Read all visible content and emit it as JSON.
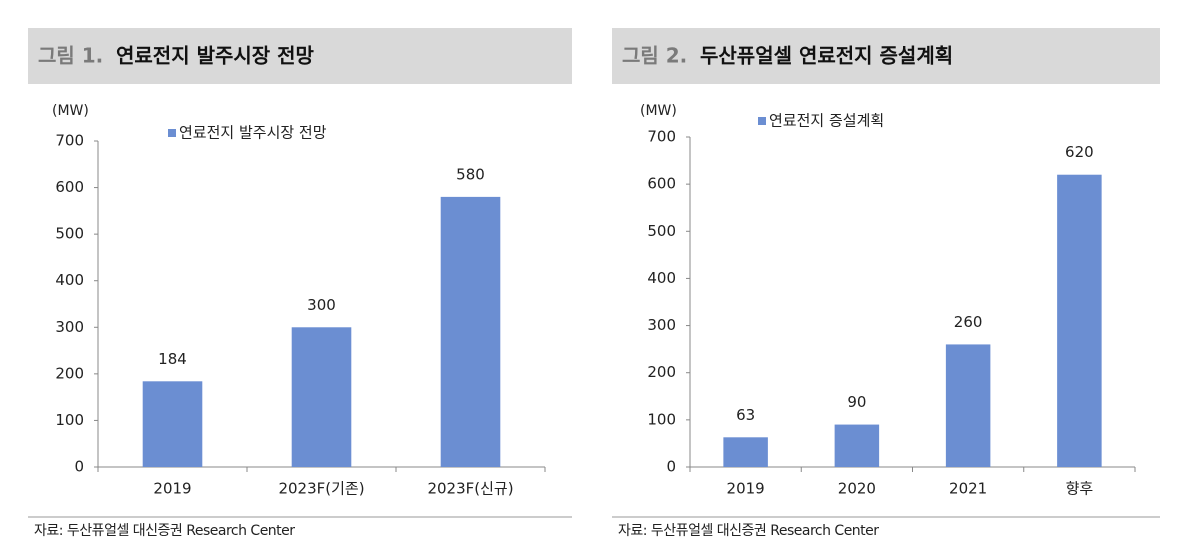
{
  "chart_data": [
    {
      "type": "bar",
      "label": "그림 1.",
      "title": "연료전지 발주시장 전망",
      "y_label": "(MW)",
      "categories": [
        "2019",
        "2023F(기존)",
        "2023F(신규)"
      ],
      "series": [
        {
          "name": "연료전지 발주시장 전망",
          "color": "#6b8ed2",
          "values": [
            184,
            300,
            580
          ]
        }
      ],
      "ylim": [
        0,
        700
      ],
      "yticks": [
        0,
        100,
        200,
        300,
        400,
        500,
        600,
        700
      ],
      "source": "자료: 두산퓨얼셀 대신증권 Research Center"
    },
    {
      "type": "bar",
      "label": "그림 2.",
      "title": "두산퓨얼셀 연료전지 증설계획",
      "y_label": "(MW)",
      "categories": [
        "2019",
        "2020",
        "2021",
        "향후"
      ],
      "series": [
        {
          "name": "연료전지 증설계획",
          "color": "#6b8ed2",
          "values": [
            63,
            90,
            260,
            620
          ]
        }
      ],
      "ylim": [
        0,
        700
      ],
      "yticks": [
        0,
        100,
        200,
        300,
        400,
        500,
        600,
        700
      ],
      "source": "자료: 두산퓨얼셀 대신증권 Research Center"
    }
  ]
}
